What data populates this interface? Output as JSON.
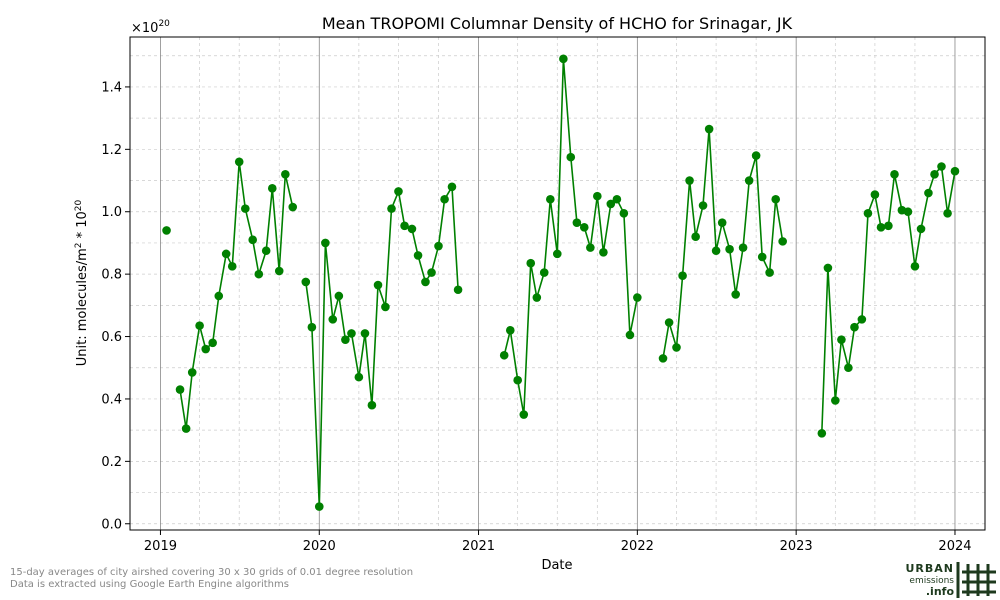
{
  "chart_data": {
    "type": "line",
    "title": "Mean TROPOMI Columnar Density of HCHO for Srinagar, JK",
    "xlabel": "Date",
    "ylabel_main": "Unit: molecules/m",
    "ylabel_sup1": "2",
    "ylabel_mid": " * 10",
    "ylabel_sup2": "20",
    "multiplier_base": "×10",
    "multiplier_exp": "20",
    "xlim": [
      "2018-10-23",
      "2024-03-10"
    ],
    "ylim": [
      -0.02,
      1.56
    ],
    "x_ticks": [
      {
        "date": "2019-01-01",
        "label": "2019"
      },
      {
        "date": "2020-01-01",
        "label": "2020"
      },
      {
        "date": "2021-01-01",
        "label": "2021"
      },
      {
        "date": "2022-01-01",
        "label": "2022"
      },
      {
        "date": "2023-01-01",
        "label": "2023"
      },
      {
        "date": "2024-01-01",
        "label": "2024"
      }
    ],
    "y_ticks": [
      0.0,
      0.2,
      0.4,
      0.6,
      0.8,
      1.0,
      1.2,
      1.4
    ],
    "y_tick_labels": [
      "0.0",
      "0.2",
      "0.4",
      "0.6",
      "0.8",
      "1.0",
      "1.2",
      "1.4"
    ],
    "grid": true,
    "colors": {
      "line": "#008000",
      "marker": "#008000",
      "grid": "#cccccc",
      "year_line": "#888888"
    },
    "series": [
      {
        "segments": [
          [
            {
              "x": "2019-01-15",
              "y": 0.94
            }
          ],
          [
            {
              "x": "2019-02-15",
              "y": 0.43
            },
            {
              "x": "2019-03-01",
              "y": 0.305
            },
            {
              "x": "2019-03-15",
              "y": 0.485
            },
            {
              "x": "2019-04-01",
              "y": 0.635
            },
            {
              "x": "2019-04-15",
              "y": 0.56
            },
            {
              "x": "2019-05-01",
              "y": 0.58
            },
            {
              "x": "2019-05-15",
              "y": 0.73
            },
            {
              "x": "2019-06-01",
              "y": 0.865
            },
            {
              "x": "2019-06-15",
              "y": 0.825
            },
            {
              "x": "2019-07-01",
              "y": 1.16
            },
            {
              "x": "2019-07-15",
              "y": 1.01
            },
            {
              "x": "2019-08-01",
              "y": 0.91
            },
            {
              "x": "2019-08-15",
              "y": 0.8
            },
            {
              "x": "2019-09-01",
              "y": 0.875
            },
            {
              "x": "2019-09-15",
              "y": 1.075
            },
            {
              "x": "2019-10-01",
              "y": 0.81
            },
            {
              "x": "2019-10-15",
              "y": 1.12
            },
            {
              "x": "2019-11-01",
              "y": 1.015
            }
          ],
          [
            {
              "x": "2019-12-01",
              "y": 0.775
            },
            {
              "x": "2019-12-15",
              "y": 0.63
            },
            {
              "x": "2020-01-01",
              "y": 0.055
            },
            {
              "x": "2020-01-15",
              "y": 0.9
            },
            {
              "x": "2020-02-01",
              "y": 0.655
            },
            {
              "x": "2020-02-15",
              "y": 0.73
            },
            {
              "x": "2020-03-01",
              "y": 0.59
            },
            {
              "x": "2020-03-15",
              "y": 0.61
            },
            {
              "x": "2020-04-01",
              "y": 0.47
            },
            {
              "x": "2020-04-15",
              "y": 0.61
            },
            {
              "x": "2020-05-01",
              "y": 0.38
            },
            {
              "x": "2020-05-15",
              "y": 0.765
            },
            {
              "x": "2020-06-01",
              "y": 0.695
            },
            {
              "x": "2020-06-15",
              "y": 1.01
            },
            {
              "x": "2020-07-01",
              "y": 1.065
            },
            {
              "x": "2020-07-15",
              "y": 0.955
            },
            {
              "x": "2020-08-01",
              "y": 0.945
            },
            {
              "x": "2020-08-15",
              "y": 0.86
            },
            {
              "x": "2020-09-01",
              "y": 0.775
            },
            {
              "x": "2020-09-15",
              "y": 0.805
            },
            {
              "x": "2020-10-01",
              "y": 0.89
            },
            {
              "x": "2020-10-15",
              "y": 1.04
            },
            {
              "x": "2020-11-01",
              "y": 1.08
            },
            {
              "x": "2020-11-15",
              "y": 0.75
            }
          ],
          [
            {
              "x": "2021-03-01",
              "y": 0.54
            },
            {
              "x": "2021-03-15",
              "y": 0.62
            },
            {
              "x": "2021-04-01",
              "y": 0.46
            },
            {
              "x": "2021-04-15",
              "y": 0.35
            },
            {
              "x": "2021-05-01",
              "y": 0.835
            },
            {
              "x": "2021-05-15",
              "y": 0.725
            },
            {
              "x": "2021-06-01",
              "y": 0.805
            },
            {
              "x": "2021-06-15",
              "y": 1.04
            },
            {
              "x": "2021-07-01",
              "y": 0.865
            },
            {
              "x": "2021-07-15",
              "y": 1.49
            },
            {
              "x": "2021-08-01",
              "y": 1.175
            },
            {
              "x": "2021-08-15",
              "y": 0.965
            },
            {
              "x": "2021-09-01",
              "y": 0.95
            },
            {
              "x": "2021-09-15",
              "y": 0.885
            },
            {
              "x": "2021-10-01",
              "y": 1.05
            },
            {
              "x": "2021-10-15",
              "y": 0.87
            },
            {
              "x": "2021-11-01",
              "y": 1.025
            },
            {
              "x": "2021-11-15",
              "y": 1.04
            },
            {
              "x": "2021-12-01",
              "y": 0.995
            },
            {
              "x": "2021-12-15",
              "y": 0.605
            },
            {
              "x": "2022-01-01",
              "y": 0.725
            }
          ],
          [
            {
              "x": "2022-03-01",
              "y": 0.53
            },
            {
              "x": "2022-03-15",
              "y": 0.645
            },
            {
              "x": "2022-04-01",
              "y": 0.565
            },
            {
              "x": "2022-04-15",
              "y": 0.795
            },
            {
              "x": "2022-05-01",
              "y": 1.1
            },
            {
              "x": "2022-05-15",
              "y": 0.92
            },
            {
              "x": "2022-06-01",
              "y": 1.02
            },
            {
              "x": "2022-06-15",
              "y": 1.265
            },
            {
              "x": "2022-07-01",
              "y": 0.875
            },
            {
              "x": "2022-07-15",
              "y": 0.965
            },
            {
              "x": "2022-08-01",
              "y": 0.88
            },
            {
              "x": "2022-08-15",
              "y": 0.735
            },
            {
              "x": "2022-09-01",
              "y": 0.885
            },
            {
              "x": "2022-09-15",
              "y": 1.1
            },
            {
              "x": "2022-10-01",
              "y": 1.18
            },
            {
              "x": "2022-10-15",
              "y": 0.855
            },
            {
              "x": "2022-11-01",
              "y": 0.805
            },
            {
              "x": "2022-11-15",
              "y": 1.04
            },
            {
              "x": "2022-12-01",
              "y": 0.905
            }
          ],
          [
            {
              "x": "2023-03-01",
              "y": 0.29
            },
            {
              "x": "2023-03-15",
              "y": 0.82
            },
            {
              "x": "2023-04-01",
              "y": 0.395
            },
            {
              "x": "2023-04-15",
              "y": 0.59
            },
            {
              "x": "2023-05-01",
              "y": 0.5
            },
            {
              "x": "2023-05-15",
              "y": 0.63
            },
            {
              "x": "2023-06-01",
              "y": 0.655
            },
            {
              "x": "2023-06-15",
              "y": 0.995
            },
            {
              "x": "2023-07-01",
              "y": 1.055
            },
            {
              "x": "2023-07-15",
              "y": 0.95
            },
            {
              "x": "2023-08-01",
              "y": 0.955
            },
            {
              "x": "2023-08-15",
              "y": 1.12
            },
            {
              "x": "2023-09-01",
              "y": 1.005
            },
            {
              "x": "2023-09-15",
              "y": 1.0
            },
            {
              "x": "2023-10-01",
              "y": 0.825
            },
            {
              "x": "2023-10-15",
              "y": 0.945
            },
            {
              "x": "2023-11-01",
              "y": 1.06
            },
            {
              "x": "2023-11-15",
              "y": 1.12
            },
            {
              "x": "2023-12-01",
              "y": 1.145
            },
            {
              "x": "2023-12-15",
              "y": 0.995
            },
            {
              "x": "2024-01-01",
              "y": 1.13
            }
          ]
        ]
      }
    ]
  },
  "footnotes": [
    "15-day averages of city airshed covering 30 x 30 grids of 0.01 degree resolution",
    "Data is extracted using Google Earth Engine algorithms"
  ],
  "logo": {
    "line1": "URBAN",
    "line2": "emissions",
    "line3": ".info",
    "icon": "hash-grid-icon"
  }
}
